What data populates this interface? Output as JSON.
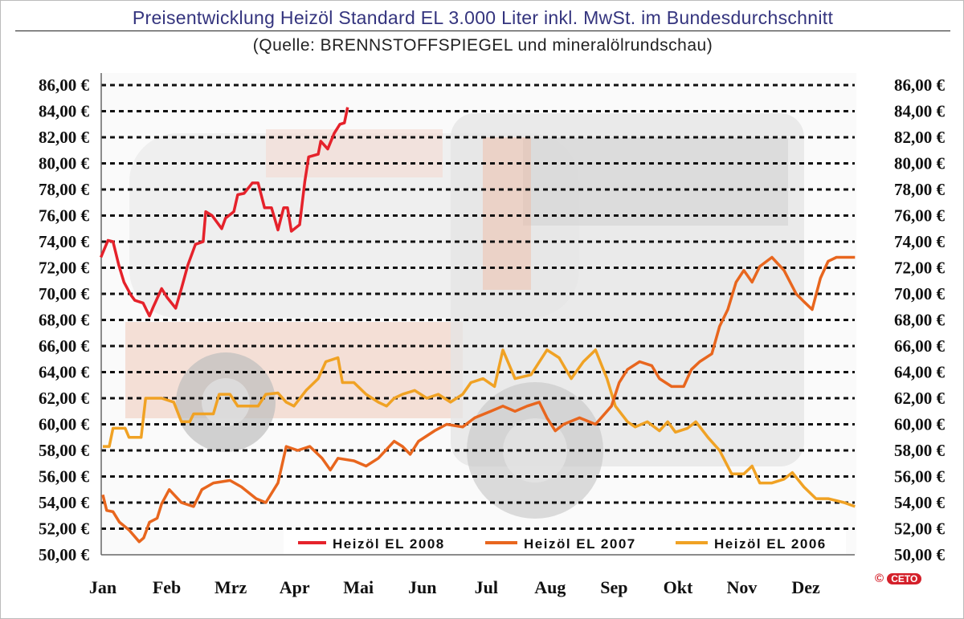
{
  "chart_data": {
    "type": "line",
    "title": "Preisentwicklung Heizöl Standard EL 3.000 Liter inkl. MwSt. im Bundesdurchschnitt",
    "subtitle": "(Quelle: BRENNSTOFFSPIEGEL und mineralölrundschau)",
    "xlabel": "",
    "ylabel": "",
    "x_tick_labels": [
      "Jan",
      "Feb",
      "Mrz",
      "Apr",
      "Mai",
      "Jun",
      "Jul",
      "Aug",
      "Sep",
      "Okt",
      "Nov",
      "Dez"
    ],
    "y_tick_labels": [
      "86,00 €",
      "84,00 €",
      "82,00 €",
      "80,00 €",
      "78,00 €",
      "76,00 €",
      "74,00 €",
      "72,00 €",
      "70,00 €",
      "68,00 €",
      "66,00 €",
      "64,00 €",
      "62,00 €",
      "60,00 €",
      "58,00 €",
      "56,00 €",
      "54,00 €",
      "52,00 €",
      "50,00 €"
    ],
    "ylim": [
      50,
      86
    ],
    "y_axes": "left and right",
    "grid": "horizontal dashed",
    "legend_placement": "bottom",
    "x_unit_note_hidden": "",
    "series": [
      {
        "name": "Heizöl EL 2008",
        "color": "#e5222b",
        "x": [
          0.97,
          1.08,
          1.16,
          1.25,
          1.33,
          1.44,
          1.5,
          1.63,
          1.73,
          1.79,
          1.92,
          2.01,
          2.14,
          2.23,
          2.33,
          2.45,
          2.57,
          2.61,
          2.71,
          2.86,
          2.92,
          3.05,
          3.11,
          3.21,
          3.34,
          3.43,
          3.53,
          3.64,
          3.74,
          3.83,
          3.89,
          3.95,
          4.08,
          4.16,
          4.22,
          4.37,
          4.41,
          4.52,
          4.62,
          4.71,
          4.78,
          4.83
        ],
        "y": [
          72.8,
          74.1,
          74.0,
          72.2,
          70.9,
          69.9,
          69.5,
          69.3,
          68.3,
          69.0,
          70.4,
          69.7,
          68.9,
          70.4,
          72.2,
          73.8,
          74.0,
          76.3,
          76.0,
          75.0,
          75.8,
          76.3,
          77.6,
          77.7,
          78.5,
          78.5,
          76.6,
          76.6,
          74.9,
          76.6,
          76.6,
          74.8,
          75.3,
          78.6,
          80.5,
          80.7,
          81.7,
          81.1,
          82.3,
          83.0,
          83.1,
          84.3
        ]
      },
      {
        "name": "Heizöl EL 2007",
        "color": "#e8661e",
        "x": [
          1.0,
          1.06,
          1.16,
          1.26,
          1.41,
          1.57,
          1.64,
          1.73,
          1.85,
          1.92,
          2.04,
          2.23,
          2.42,
          2.55,
          2.73,
          2.99,
          3.17,
          3.4,
          3.55,
          3.74,
          3.87,
          4.05,
          4.24,
          4.43,
          4.56,
          4.68,
          4.93,
          5.12,
          5.31,
          5.56,
          5.69,
          5.81,
          5.94,
          6.19,
          6.38,
          6.63,
          6.82,
          7.07,
          7.26,
          7.45,
          7.64,
          7.83,
          7.95,
          8.08,
          8.21,
          8.46,
          8.71,
          8.96,
          9.08,
          9.21,
          9.4,
          9.59,
          9.71,
          9.9,
          10.09,
          10.21,
          10.34,
          10.53,
          10.65,
          10.78,
          10.91,
          11.03,
          11.16,
          11.28,
          11.47,
          11.66,
          11.85,
          11.97,
          12.1,
          12.23,
          12.35,
          12.48,
          12.77
        ],
        "y": [
          54.6,
          53.4,
          53.3,
          52.5,
          51.9,
          51.0,
          51.3,
          52.5,
          52.8,
          53.9,
          55.0,
          54.0,
          53.7,
          55.0,
          55.5,
          55.7,
          55.2,
          54.3,
          54.0,
          55.5,
          58.3,
          58.0,
          58.3,
          57.4,
          56.5,
          57.4,
          57.2,
          56.8,
          57.4,
          58.7,
          58.3,
          57.7,
          58.7,
          59.5,
          60.0,
          59.8,
          60.5,
          61.0,
          61.4,
          61.0,
          61.4,
          61.7,
          60.5,
          59.5,
          60.0,
          60.5,
          60.0,
          61.4,
          63.2,
          64.2,
          64.8,
          64.5,
          63.5,
          62.9,
          62.9,
          64.2,
          64.8,
          65.4,
          67.5,
          68.8,
          70.9,
          71.8,
          70.9,
          72.1,
          72.8,
          71.8,
          70.0,
          69.4,
          68.8,
          71.2,
          72.5,
          72.8,
          72.8
        ]
      },
      {
        "name": "Heizöl EL 2006",
        "color": "#f0a224",
        "x": [
          1.0,
          1.1,
          1.16,
          1.35,
          1.41,
          1.6,
          1.67,
          1.92,
          2.11,
          2.23,
          2.36,
          2.42,
          2.73,
          2.82,
          2.99,
          3.11,
          3.43,
          3.55,
          3.74,
          3.87,
          3.99,
          4.18,
          4.37,
          4.49,
          4.68,
          4.75,
          4.93,
          5.12,
          5.31,
          5.44,
          5.56,
          5.69,
          5.88,
          6.07,
          6.25,
          6.44,
          6.63,
          6.76,
          6.95,
          7.13,
          7.26,
          7.45,
          7.7,
          7.95,
          8.14,
          8.33,
          8.52,
          8.71,
          8.89,
          9.02,
          9.21,
          9.33,
          9.52,
          9.71,
          9.84,
          9.96,
          10.15,
          10.28,
          10.47,
          10.65,
          10.84,
          11.03,
          11.16,
          11.28,
          11.47,
          11.66,
          11.79,
          11.97,
          12.16,
          12.35,
          12.6,
          12.77
        ],
        "y": [
          58.3,
          58.3,
          59.7,
          59.7,
          59.0,
          59.0,
          62.0,
          62.0,
          61.7,
          60.2,
          60.2,
          60.8,
          60.8,
          62.3,
          62.3,
          61.4,
          61.4,
          62.3,
          62.4,
          61.7,
          61.4,
          62.6,
          63.5,
          64.8,
          65.1,
          63.2,
          63.2,
          62.3,
          61.7,
          61.4,
          62.0,
          62.3,
          62.6,
          62.0,
          62.3,
          61.7,
          62.3,
          63.2,
          63.5,
          62.9,
          65.7,
          63.5,
          63.8,
          65.7,
          65.1,
          63.5,
          64.8,
          65.7,
          63.5,
          61.4,
          60.2,
          59.8,
          60.2,
          59.5,
          60.2,
          59.4,
          59.7,
          60.2,
          59.0,
          58.0,
          56.2,
          56.2,
          56.8,
          55.5,
          55.5,
          55.8,
          56.3,
          55.2,
          54.3,
          54.3,
          54.0,
          53.7
        ]
      }
    ]
  },
  "copyright": {
    "symbol": "©",
    "logo_text": "CETO"
  }
}
